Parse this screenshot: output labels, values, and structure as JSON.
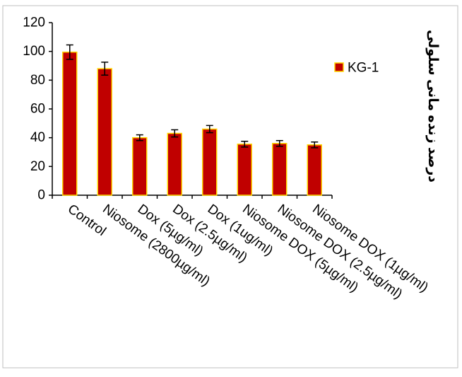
{
  "chart_data": {
    "type": "bar",
    "categories": [
      "Control",
      "Niosome (2800µg/ml)",
      "Dox (5µg/ml)",
      "Dox (2.5µg/ml)",
      "Dox (1ug/ml)",
      "Niosome DOX (5µg/ml)",
      "Niosome DOX (2.5µg/ml)",
      "Niosome DOX (1µg/ml)"
    ],
    "series": [
      {
        "name": "KG-1",
        "values": [
          99.5,
          88,
          40,
          43,
          46,
          35.5,
          36,
          35
        ],
        "errors": [
          5,
          4.5,
          2,
          2.5,
          2.5,
          2,
          2,
          2
        ],
        "color": "#c00000",
        "edge_color": "#ffd700"
      }
    ],
    "ylabel": "درصد زنده مانی سلولی",
    "ylim": [
      0,
      120
    ],
    "yticks": [
      0,
      20,
      40,
      60,
      80,
      100,
      120
    ],
    "grid": false,
    "legend_position": "right"
  }
}
